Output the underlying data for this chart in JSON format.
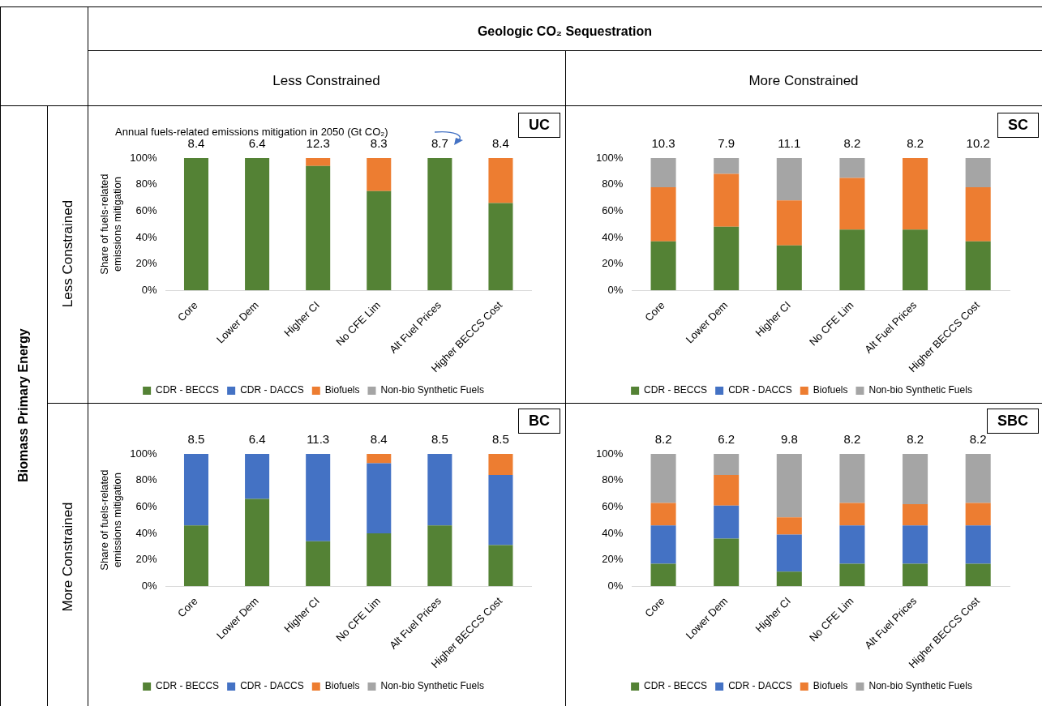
{
  "chart_data": [
    {
      "type": "bar",
      "title": "UC",
      "ylabel": "Share of fuels-related emissions mitigation",
      "categories": [
        "Core",
        "Lower Dem",
        "Higher CI",
        "No CFE Lim",
        "Alt Fuel Prices",
        "Higher BECCS Cost"
      ],
      "stacked": true,
      "legend": "bottom",
      "ylim": [
        0,
        100
      ],
      "yticks": [
        {
          "value": 0,
          "label": "0%"
        },
        {
          "value": 20,
          "label": "20%"
        },
        {
          "value": 40,
          "label": "40%"
        },
        {
          "value": 60,
          "label": "60%"
        },
        {
          "value": 80,
          "label": "80%"
        },
        {
          "value": 100,
          "label": "100%"
        }
      ],
      "series": [
        {
          "name": "CDR - BECCS",
          "color": "#548235",
          "values": [
            100,
            100,
            94,
            75,
            100,
            66
          ]
        },
        {
          "name": "CDR - DACCS",
          "color": "#4472c4",
          "values": [
            0,
            0,
            0,
            0,
            0,
            0
          ]
        },
        {
          "name": "Biofuels",
          "color": "#ed7d31",
          "values": [
            0,
            0,
            6,
            25,
            0,
            34
          ]
        },
        {
          "name": "Non-bio Synthetic Fuels",
          "color": "#a5a5a5",
          "values": [
            0,
            0,
            0,
            0,
            0,
            0
          ]
        }
      ],
      "annotations": [
        "Annual fuels-related emissions mitigation in 2050 (Gt CO₂)",
        "Geologic CO₂ Sequestration",
        "Less Constrained",
        "More Constrained",
        "Biomass Primary Energy",
        "Less Constrained",
        "More Constrained",
        {
          "text": "8.4",
          "x": "Core",
          "y": 100
        },
        {
          "text": "6.4",
          "x": "Lower Dem",
          "y": 100
        },
        {
          "text": "12.3",
          "x": "Higher CI",
          "y": 100
        },
        {
          "text": "8.3",
          "x": "No CFE Lim",
          "y": 100
        },
        {
          "text": "8.7",
          "x": "Alt Fuel Prices",
          "y": 100
        },
        {
          "text": "8.4",
          "x": "Higher BECCS Cost",
          "y": 100
        }
      ]
    },
    {
      "type": "bar",
      "title": "SC",
      "categories": [
        "Core",
        "Lower Dem",
        "Higher CI",
        "No CFE Lim",
        "Alt Fuel Prices",
        "Higher BECCS Cost"
      ],
      "stacked": true,
      "legend": "bottom",
      "ylim": [
        0,
        100
      ],
      "yticks": [
        {
          "value": 0,
          "label": "0%"
        },
        {
          "value": 20,
          "label": "20%"
        },
        {
          "value": 40,
          "label": "40%"
        },
        {
          "value": 60,
          "label": "60%"
        },
        {
          "value": 80,
          "label": "80%"
        },
        {
          "value": 100,
          "label": "100%"
        }
      ],
      "series": [
        {
          "name": "CDR - BECCS",
          "color": "#548235",
          "values": [
            37,
            48,
            34,
            46,
            46,
            37
          ]
        },
        {
          "name": "CDR - DACCS",
          "color": "#4472c4",
          "values": [
            0,
            0,
            0,
            0,
            0,
            0
          ]
        },
        {
          "name": "Biofuels",
          "color": "#ed7d31",
          "values": [
            41,
            40,
            34,
            39,
            54,
            41
          ]
        },
        {
          "name": "Non-bio Synthetic Fuels",
          "color": "#a5a5a5",
          "values": [
            22,
            12,
            32,
            15,
            0,
            22
          ]
        }
      ],
      "annotations": [
        {
          "text": "10.3",
          "x": "Core",
          "y": 100
        },
        {
          "text": "7.9",
          "x": "Lower Dem",
          "y": 100
        },
        {
          "text": "11.1",
          "x": "Higher CI",
          "y": 100
        },
        {
          "text": "8.2",
          "x": "No CFE Lim",
          "y": 100
        },
        {
          "text": "8.2",
          "x": "Alt Fuel Prices",
          "y": 100
        },
        {
          "text": "10.2",
          "x": "Higher BECCS Cost",
          "y": 100
        }
      ]
    },
    {
      "type": "bar",
      "title": "BC",
      "ylabel": "Share of fuels-related emissions mitigation",
      "categories": [
        "Core",
        "Lower Dem",
        "Higher CI",
        "No CFE Lim",
        "Alt Fuel Prices",
        "Higher BECCS Cost"
      ],
      "stacked": true,
      "legend": "bottom",
      "ylim": [
        0,
        100
      ],
      "yticks": [
        {
          "value": 0,
          "label": "0%"
        },
        {
          "value": 20,
          "label": "20%"
        },
        {
          "value": 40,
          "label": "40%"
        },
        {
          "value": 60,
          "label": "60%"
        },
        {
          "value": 80,
          "label": "80%"
        },
        {
          "value": 100,
          "label": "100%"
        }
      ],
      "series": [
        {
          "name": "CDR - BECCS",
          "color": "#548235",
          "values": [
            46,
            66,
            34,
            40,
            46,
            31
          ]
        },
        {
          "name": "CDR - DACCS",
          "color": "#4472c4",
          "values": [
            54,
            34,
            66,
            53,
            54,
            53
          ]
        },
        {
          "name": "Biofuels",
          "color": "#ed7d31",
          "values": [
            0,
            0,
            0,
            7,
            0,
            16
          ]
        },
        {
          "name": "Non-bio Synthetic Fuels",
          "color": "#a5a5a5",
          "values": [
            0,
            0,
            0,
            0,
            0,
            0
          ]
        }
      ],
      "annotations": [
        {
          "text": "8.5",
          "x": "Core",
          "y": 100
        },
        {
          "text": "6.4",
          "x": "Lower Dem",
          "y": 100
        },
        {
          "text": "11.3",
          "x": "Higher CI",
          "y": 100
        },
        {
          "text": "8.4",
          "x": "No CFE Lim",
          "y": 100
        },
        {
          "text": "8.5",
          "x": "Alt Fuel Prices",
          "y": 100
        },
        {
          "text": "8.5",
          "x": "Higher BECCS Cost",
          "y": 100
        }
      ]
    },
    {
      "type": "bar",
      "title": "SBC",
      "categories": [
        "Core",
        "Lower Dem",
        "Higher CI",
        "No CFE Lim",
        "Alt Fuel Prices",
        "Higher BECCS Cost"
      ],
      "stacked": true,
      "legend": "bottom",
      "ylim": [
        0,
        100
      ],
      "yticks": [
        {
          "value": 0,
          "label": "0%"
        },
        {
          "value": 20,
          "label": "20%"
        },
        {
          "value": 40,
          "label": "40%"
        },
        {
          "value": 60,
          "label": "60%"
        },
        {
          "value": 80,
          "label": "80%"
        },
        {
          "value": 100,
          "label": "100%"
        }
      ],
      "series": [
        {
          "name": "CDR - BECCS",
          "color": "#548235",
          "values": [
            17,
            36,
            11,
            17,
            17,
            17
          ]
        },
        {
          "name": "CDR - DACCS",
          "color": "#4472c4",
          "values": [
            29,
            25,
            28,
            29,
            29,
            29
          ]
        },
        {
          "name": "Biofuels",
          "color": "#ed7d31",
          "values": [
            17,
            23,
            13,
            17,
            16,
            17
          ]
        },
        {
          "name": "Non-bio Synthetic Fuels",
          "color": "#a5a5a5",
          "values": [
            37,
            16,
            48,
            37,
            38,
            37
          ]
        }
      ],
      "annotations": [
        {
          "text": "8.2",
          "x": "Core",
          "y": 100
        },
        {
          "text": "6.2",
          "x": "Lower Dem",
          "y": 100
        },
        {
          "text": "9.8",
          "x": "Higher CI",
          "y": 100
        },
        {
          "text": "8.2",
          "x": "No CFE Lim",
          "y": 100
        },
        {
          "text": "8.2",
          "x": "Alt Fuel Prices",
          "y": 100
        },
        {
          "text": "8.2",
          "x": "Higher BECCS Cost",
          "y": 100
        }
      ]
    }
  ]
}
